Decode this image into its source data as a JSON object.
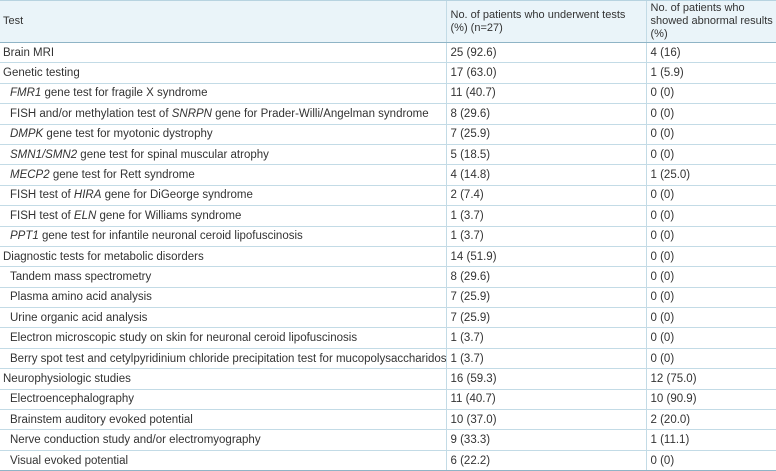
{
  "table": {
    "headers": {
      "test": "Test",
      "underwent": "No. of patients who underwent tests (%) (n=27)",
      "abnormal": "No. of patients who showed abnormal results (%)"
    },
    "rows": [
      {
        "segments": [
          {
            "text": "Brain MRI",
            "italic": false
          }
        ],
        "indent": false,
        "underwent": "25 (92.6)",
        "abnormal": "4 (16)"
      },
      {
        "segments": [
          {
            "text": "Genetic testing",
            "italic": false
          }
        ],
        "indent": false,
        "underwent": "17 (63.0)",
        "abnormal": "1 (5.9)"
      },
      {
        "segments": [
          {
            "text": "FMR1",
            "italic": true
          },
          {
            "text": " gene test for fragile X syndrome",
            "italic": false
          }
        ],
        "indent": true,
        "underwent": "11 (40.7)",
        "abnormal": "0 (0)"
      },
      {
        "segments": [
          {
            "text": "FISH and/or methylation test of ",
            "italic": false
          },
          {
            "text": "SNRPN",
            "italic": true
          },
          {
            "text": " gene for Prader-Willi/Angelman syndrome",
            "italic": false
          }
        ],
        "indent": true,
        "underwent": "8 (29.6)",
        "abnormal": "0 (0)"
      },
      {
        "segments": [
          {
            "text": "DMPK",
            "italic": true
          },
          {
            "text": " gene test for myotonic dystrophy",
            "italic": false
          }
        ],
        "indent": true,
        "underwent": "7 (25.9)",
        "abnormal": "0 (0)"
      },
      {
        "segments": [
          {
            "text": "SMN1/SMN2",
            "italic": true
          },
          {
            "text": " gene test for spinal muscular atrophy",
            "italic": false
          }
        ],
        "indent": true,
        "underwent": "5 (18.5)",
        "abnormal": "0 (0)"
      },
      {
        "segments": [
          {
            "text": "MECP2",
            "italic": true
          },
          {
            "text": " gene test for Rett syndrome",
            "italic": false
          }
        ],
        "indent": true,
        "underwent": "4 (14.8)",
        "abnormal": "1 (25.0)"
      },
      {
        "segments": [
          {
            "text": "FISH test of ",
            "italic": false
          },
          {
            "text": "HIRA",
            "italic": true
          },
          {
            "text": " gene for DiGeorge syndrome",
            "italic": false
          }
        ],
        "indent": true,
        "underwent": "2 (7.4)",
        "abnormal": "0 (0)"
      },
      {
        "segments": [
          {
            "text": "FISH test of ",
            "italic": false
          },
          {
            "text": "ELN",
            "italic": true
          },
          {
            "text": " gene for Williams syndrome",
            "italic": false
          }
        ],
        "indent": true,
        "underwent": "1 (3.7)",
        "abnormal": "0 (0)"
      },
      {
        "segments": [
          {
            "text": "PPT1",
            "italic": true
          },
          {
            "text": " gene test for infantile neuronal ceroid lipofuscinosis",
            "italic": false
          }
        ],
        "indent": true,
        "underwent": "1 (3.7)",
        "abnormal": "0 (0)"
      },
      {
        "segments": [
          {
            "text": "Diagnostic tests for metabolic disorders",
            "italic": false
          }
        ],
        "indent": false,
        "underwent": "14 (51.9)",
        "abnormal": "0 (0)"
      },
      {
        "segments": [
          {
            "text": "Tandem mass spectrometry",
            "italic": false
          }
        ],
        "indent": true,
        "underwent": "8 (29.6)",
        "abnormal": "0 (0)"
      },
      {
        "segments": [
          {
            "text": "Plasma amino acid analysis",
            "italic": false
          }
        ],
        "indent": true,
        "underwent": "7 (25.9)",
        "abnormal": "0 (0)"
      },
      {
        "segments": [
          {
            "text": "Urine organic acid analysis",
            "italic": false
          }
        ],
        "indent": true,
        "underwent": "7 (25.9)",
        "abnormal": "0 (0)"
      },
      {
        "segments": [
          {
            "text": "Electron microscopic study on skin for neuronal ceroid lipofuscinosis",
            "italic": false
          }
        ],
        "indent": true,
        "underwent": "1 (3.7)",
        "abnormal": "0 (0)"
      },
      {
        "segments": [
          {
            "text": "Berry spot test and cetylpyridinium chloride precipitation test for mucopolysaccharidosis",
            "italic": false
          }
        ],
        "indent": true,
        "underwent": "1 (3.7)",
        "abnormal": "0 (0)"
      },
      {
        "segments": [
          {
            "text": "Neurophysiologic studies",
            "italic": false
          }
        ],
        "indent": false,
        "underwent": "16 (59.3)",
        "abnormal": "12 (75.0)"
      },
      {
        "segments": [
          {
            "text": "Electroencephalography",
            "italic": false
          }
        ],
        "indent": true,
        "underwent": "11 (40.7)",
        "abnormal": "10 (90.9)"
      },
      {
        "segments": [
          {
            "text": "Brainstem auditory evoked potential",
            "italic": false
          }
        ],
        "indent": true,
        "underwent": "10 (37.0)",
        "abnormal": "2 (20.0)"
      },
      {
        "segments": [
          {
            "text": "Nerve conduction study and/or electromyography",
            "italic": false
          }
        ],
        "indent": true,
        "underwent": "9 (33.3)",
        "abnormal": "1 (11.1)"
      },
      {
        "segments": [
          {
            "text": "Visual evoked potential",
            "italic": false
          }
        ],
        "indent": true,
        "underwent": "6 (22.2)",
        "abnormal": "0 (0)"
      }
    ]
  }
}
